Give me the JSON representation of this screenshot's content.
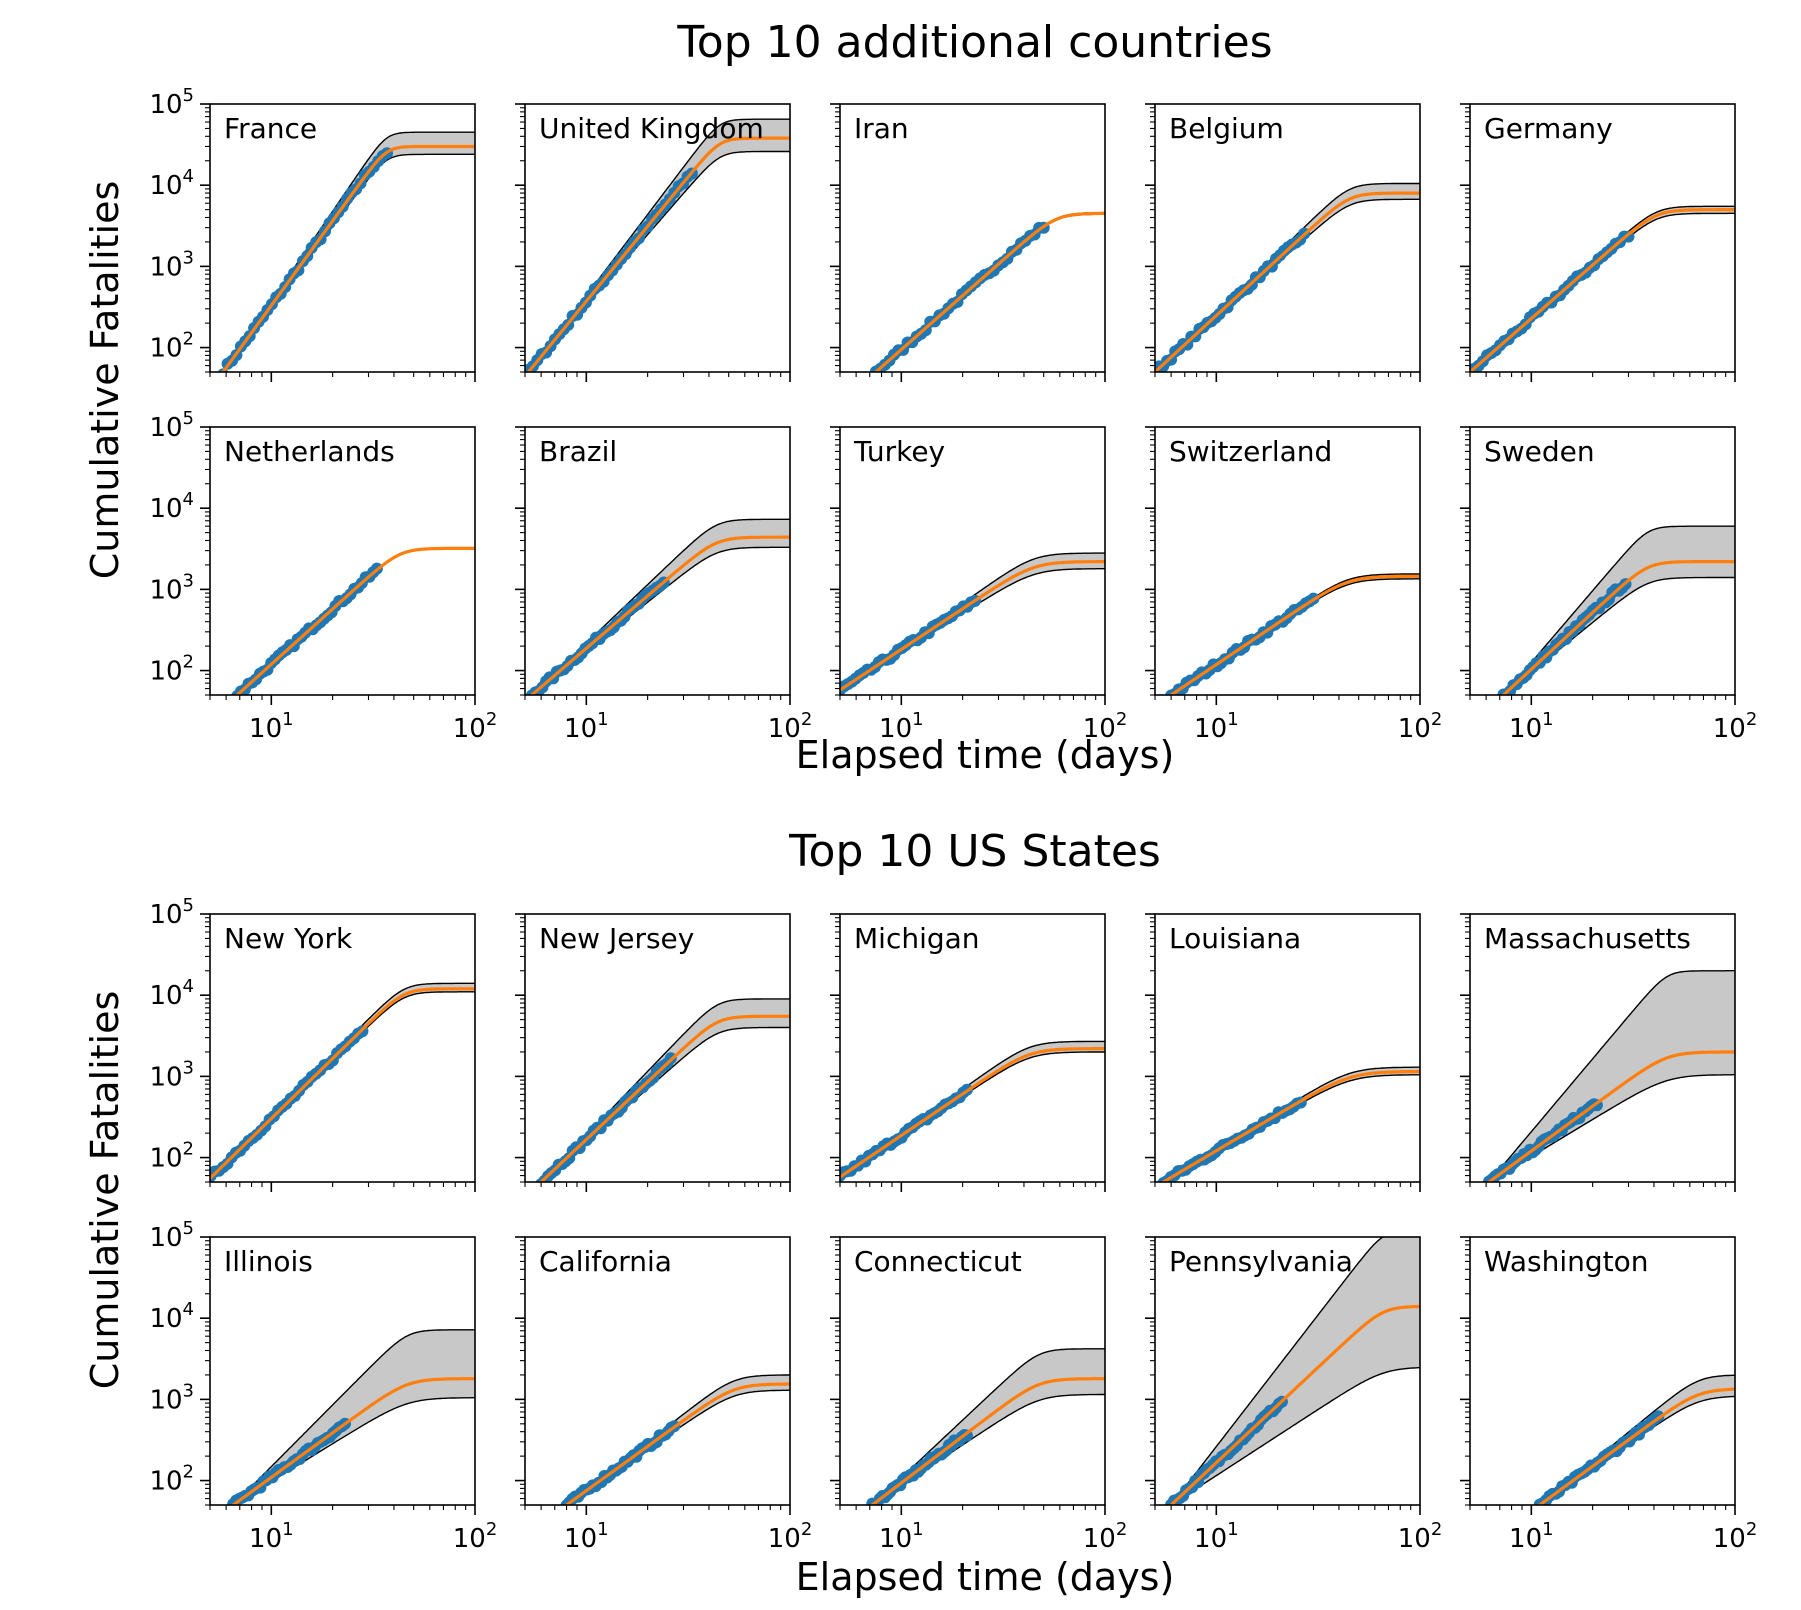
{
  "chart_data": [
    {
      "type": "scatter",
      "title": "Top 10 additional countries",
      "xlabel": "Elapsed time (days)",
      "ylabel": "Cumulative Fatalities",
      "xscale": "log",
      "yscale": "log",
      "xlim": [
        5,
        100
      ],
      "ylim": [
        50,
        100000
      ],
      "xticks": [
        {
          "value": 10,
          "base": "10",
          "exp": "1"
        },
        {
          "value": 100,
          "base": "10",
          "exp": "2"
        }
      ],
      "yticks": [
        {
          "value": 100,
          "base": "10",
          "exp": "2"
        },
        {
          "value": 1000,
          "base": "10",
          "exp": "3"
        },
        {
          "value": 10000,
          "base": "10",
          "exp": "4"
        },
        {
          "value": 100000,
          "base": "10",
          "exp": "5"
        }
      ],
      "grid": false,
      "colors": {
        "data": "#1f77b4",
        "fit": "#ff7f0e",
        "band": "#c8c8c8"
      },
      "panels": [
        {
          "label": "France",
          "t0": 5.8,
          "tlast": 37,
          "plateau": 30000,
          "band_low": 24000,
          "band_high": 45000,
          "rise_days": 31
        },
        {
          "label": "United Kingdom",
          "t0": 5.2,
          "tlast": 33,
          "plateau": 38000,
          "band_low": 26000,
          "band_high": 65000,
          "rise_days": 40
        },
        {
          "label": "Iran",
          "t0": 7.5,
          "tlast": 50,
          "plateau": 4500,
          "band_low": 4400,
          "band_high": 4600,
          "rise_days": 50
        },
        {
          "label": "Belgium",
          "t0": 5.0,
          "tlast": 27,
          "plateau": 8000,
          "band_low": 6700,
          "band_high": 10500,
          "rise_days": 40
        },
        {
          "label": "Germany",
          "t0": 5.0,
          "tlast": 30,
          "plateau": 5000,
          "band_low": 4500,
          "band_high": 5500,
          "rise_days": 36
        },
        {
          "label": "Netherlands",
          "t0": 6.8,
          "tlast": 33,
          "plateau": 3200,
          "band_low": 3150,
          "band_high": 3250,
          "rise_days": 36
        },
        {
          "label": "Brazil",
          "t0": 5.4,
          "tlast": 24,
          "plateau": 4400,
          "band_low": 3300,
          "band_high": 7300,
          "rise_days": 38
        },
        {
          "label": "Turkey",
          "t0": 4.6,
          "tlast": 23,
          "plateau": 2200,
          "band_low": 1800,
          "band_high": 2800,
          "rise_days": 40
        },
        {
          "label": "Switzerland",
          "t0": 6.0,
          "tlast": 30,
          "plateau": 1450,
          "band_low": 1350,
          "band_high": 1550,
          "rise_days": 38
        },
        {
          "label": "Sweden",
          "t0": 7.3,
          "tlast": 29,
          "plateau": 2200,
          "band_low": 1400,
          "band_high": 6000,
          "rise_days": 30
        }
      ]
    },
    {
      "type": "scatter",
      "title": "Top 10 US States",
      "xlabel": "Elapsed time (days)",
      "ylabel": "Cumulative Fatalities",
      "xscale": "log",
      "yscale": "log",
      "xlim": [
        5,
        100
      ],
      "ylim": [
        50,
        100000
      ],
      "xticks": [
        {
          "value": 10,
          "base": "10",
          "exp": "1"
        },
        {
          "value": 100,
          "base": "10",
          "exp": "2"
        }
      ],
      "yticks": [
        {
          "value": 100,
          "base": "10",
          "exp": "2"
        },
        {
          "value": 1000,
          "base": "10",
          "exp": "3"
        },
        {
          "value": 10000,
          "base": "10",
          "exp": "4"
        },
        {
          "value": 100000,
          "base": "10",
          "exp": "5"
        }
      ],
      "grid": false,
      "colors": {
        "data": "#1f77b4",
        "fit": "#ff7f0e",
        "band": "#c8c8c8"
      },
      "panels": [
        {
          "label": "New York",
          "t0": 4.8,
          "tlast": 28,
          "plateau": 12000,
          "band_low": 11000,
          "band_high": 14000,
          "rise_days": 40
        },
        {
          "label": "New Jersey",
          "t0": 6.0,
          "tlast": 26,
          "plateau": 5500,
          "band_low": 4000,
          "band_high": 9000,
          "rise_days": 38
        },
        {
          "label": "Michigan",
          "t0": 4.6,
          "tlast": 21,
          "plateau": 2200,
          "band_low": 2000,
          "band_high": 2700,
          "rise_days": 38
        },
        {
          "label": "Louisiana",
          "t0": 5.5,
          "tlast": 26,
          "plateau": 1150,
          "band_low": 1050,
          "band_high": 1300,
          "rise_days": 40
        },
        {
          "label": "Massachusetts",
          "t0": 6.2,
          "tlast": 21,
          "plateau": 2000,
          "band_low": 1050,
          "band_high": 20000,
          "rise_days": 40
        },
        {
          "label": "Illinois",
          "t0": 6.5,
          "tlast": 23,
          "plateau": 1800,
          "band_low": 1050,
          "band_high": 7200,
          "rise_days": 40
        },
        {
          "label": "California",
          "t0": 8.0,
          "tlast": 27,
          "plateau": 1550,
          "band_low": 1300,
          "band_high": 2000,
          "rise_days": 45
        },
        {
          "label": "Connecticut",
          "t0": 7.2,
          "tlast": 21,
          "plateau": 1800,
          "band_low": 1150,
          "band_high": 4200,
          "rise_days": 40
        },
        {
          "label": "Pennsylvania",
          "t0": 6.0,
          "tlast": 21,
          "plateau": 14000,
          "band_low": 2500,
          "band_high": 120000,
          "rise_days": 60
        },
        {
          "label": "Washington",
          "t0": 11.0,
          "tlast": 42,
          "plateau": 1350,
          "band_low": 1100,
          "band_high": 2000,
          "rise_days": 55
        }
      ]
    }
  ]
}
